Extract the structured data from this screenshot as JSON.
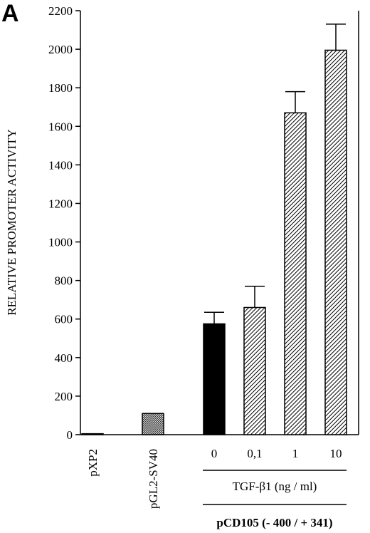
{
  "chart_data": {
    "type": "bar",
    "panel_label": "A",
    "ylabel": "RELATIVE PROMOTER ACTIVITY",
    "ylim": [
      0,
      2200
    ],
    "yticks": [
      0,
      200,
      400,
      600,
      800,
      1000,
      1200,
      1400,
      1600,
      1800,
      2000,
      2200
    ],
    "categories": [
      "pXP2",
      "pGL2-SV40",
      "0",
      "0,1",
      "1",
      "10"
    ],
    "values": [
      5,
      110,
      575,
      660,
      1670,
      1995
    ],
    "errors": [
      0,
      0,
      60,
      110,
      110,
      135
    ],
    "fills": [
      "#000000",
      "checker",
      "#000000",
      "hatch",
      "hatch",
      "hatch"
    ],
    "group_label_1": "TGF-β1 (ng / ml)",
    "group_label_2": "pCD105 (- 400 / + 341)",
    "grid": false
  }
}
